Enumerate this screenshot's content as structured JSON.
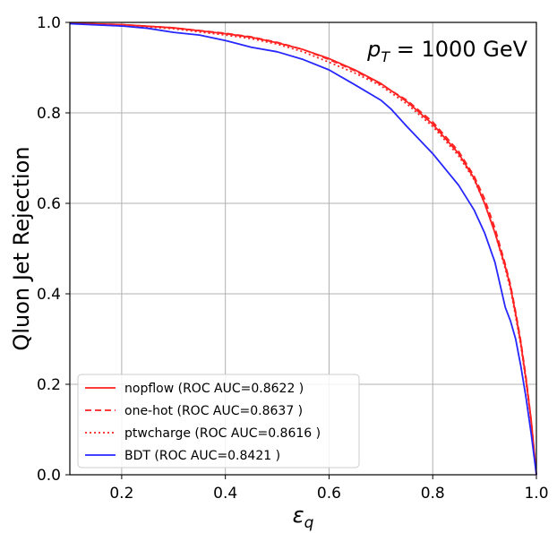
{
  "chart_data": {
    "type": "line",
    "title": "",
    "annotation": {
      "prefix": "p",
      "subscript": "T",
      "suffix": " = 1000 GeV"
    },
    "xlabel": {
      "symbol": "ε",
      "subscript": "q"
    },
    "ylabel": "Qluon Jet Rejection",
    "xlim": [
      0.1,
      1.0
    ],
    "ylim": [
      0.0,
      1.0
    ],
    "xticks": [
      0.2,
      0.4,
      0.6,
      0.8,
      1.0
    ],
    "yticks": [
      0.0,
      0.2,
      0.4,
      0.6,
      0.8,
      1.0
    ],
    "grid": true,
    "legend_position": "lower-left",
    "series": [
      {
        "name": "nopflow (ROC AUC=0.8622 )",
        "color": "#ff2020",
        "style": "solid",
        "points": [
          [
            0.1,
            0.998
          ],
          [
            0.2,
            0.995
          ],
          [
            0.3,
            0.988
          ],
          [
            0.4,
            0.975
          ],
          [
            0.45,
            0.967
          ],
          [
            0.5,
            0.955
          ],
          [
            0.55,
            0.94
          ],
          [
            0.6,
            0.92
          ],
          [
            0.65,
            0.895
          ],
          [
            0.7,
            0.865
          ],
          [
            0.75,
            0.825
          ],
          [
            0.8,
            0.775
          ],
          [
            0.85,
            0.71
          ],
          [
            0.88,
            0.655
          ],
          [
            0.9,
            0.6
          ],
          [
            0.92,
            0.535
          ],
          [
            0.94,
            0.46
          ],
          [
            0.95,
            0.415
          ],
          [
            0.96,
            0.355
          ],
          [
            0.97,
            0.29
          ],
          [
            0.98,
            0.21
          ],
          [
            0.99,
            0.12
          ],
          [
            1.0,
            0.0
          ]
        ]
      },
      {
        "name": "one-hot (ROC AUC=0.8637 )",
        "color": "#ff2020",
        "style": "dashed",
        "points": [
          [
            0.1,
            0.998
          ],
          [
            0.2,
            0.995
          ],
          [
            0.3,
            0.988
          ],
          [
            0.4,
            0.976
          ],
          [
            0.45,
            0.968
          ],
          [
            0.5,
            0.956
          ],
          [
            0.55,
            0.94
          ],
          [
            0.6,
            0.918
          ],
          [
            0.65,
            0.893
          ],
          [
            0.7,
            0.863
          ],
          [
            0.75,
            0.828
          ],
          [
            0.8,
            0.78
          ],
          [
            0.85,
            0.715
          ],
          [
            0.88,
            0.66
          ],
          [
            0.9,
            0.61
          ],
          [
            0.92,
            0.545
          ],
          [
            0.94,
            0.465
          ],
          [
            0.95,
            0.42
          ],
          [
            0.96,
            0.36
          ],
          [
            0.97,
            0.295
          ],
          [
            0.98,
            0.215
          ],
          [
            0.99,
            0.12
          ],
          [
            1.0,
            0.0
          ]
        ]
      },
      {
        "name": "ptwcharge (ROC AUC=0.8616 )",
        "color": "#ff2020",
        "style": "dotted",
        "points": [
          [
            0.1,
            0.998
          ],
          [
            0.2,
            0.994
          ],
          [
            0.3,
            0.986
          ],
          [
            0.4,
            0.972
          ],
          [
            0.45,
            0.964
          ],
          [
            0.5,
            0.952
          ],
          [
            0.55,
            0.935
          ],
          [
            0.6,
            0.912
          ],
          [
            0.65,
            0.888
          ],
          [
            0.7,
            0.86
          ],
          [
            0.75,
            0.82
          ],
          [
            0.8,
            0.77
          ],
          [
            0.85,
            0.705
          ],
          [
            0.88,
            0.652
          ],
          [
            0.9,
            0.6
          ],
          [
            0.92,
            0.535
          ],
          [
            0.94,
            0.455
          ],
          [
            0.95,
            0.41
          ],
          [
            0.96,
            0.35
          ],
          [
            0.97,
            0.285
          ],
          [
            0.98,
            0.205
          ],
          [
            0.99,
            0.115
          ],
          [
            1.0,
            0.0
          ]
        ]
      },
      {
        "name": "BDT (ROC AUC=0.8421 )",
        "color": "#2626ff",
        "style": "solid",
        "points": [
          [
            0.1,
            0.997
          ],
          [
            0.2,
            0.992
          ],
          [
            0.25,
            0.987
          ],
          [
            0.3,
            0.978
          ],
          [
            0.35,
            0.972
          ],
          [
            0.4,
            0.96
          ],
          [
            0.45,
            0.945
          ],
          [
            0.5,
            0.935
          ],
          [
            0.55,
            0.918
          ],
          [
            0.6,
            0.895
          ],
          [
            0.65,
            0.862
          ],
          [
            0.7,
            0.828
          ],
          [
            0.72,
            0.808
          ],
          [
            0.75,
            0.77
          ],
          [
            0.8,
            0.71
          ],
          [
            0.85,
            0.64
          ],
          [
            0.88,
            0.585
          ],
          [
            0.9,
            0.535
          ],
          [
            0.92,
            0.47
          ],
          [
            0.94,
            0.37
          ],
          [
            0.95,
            0.34
          ],
          [
            0.96,
            0.3
          ],
          [
            0.97,
            0.24
          ],
          [
            0.98,
            0.17
          ],
          [
            0.99,
            0.09
          ],
          [
            1.0,
            0.0
          ]
        ]
      }
    ]
  }
}
